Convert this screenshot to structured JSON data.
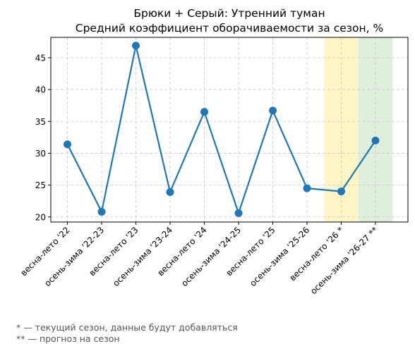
{
  "chart_data": {
    "type": "line",
    "title": "Брюки + Серый: Утренний туман",
    "subtitle": "Средний коэффициент оборачиваемости за сезон, %",
    "xlabel": "",
    "ylabel": "",
    "categories": [
      "весна-лето '22",
      "осень-зима '22-23",
      "весна-лето '23",
      "осень-зима '23-24",
      "весна-лето '24",
      "осень-зима '24-25",
      "весна-лето '25",
      "осень-зима '25-26",
      "весна-лето '26 *",
      "осень-зима '26-27 **"
    ],
    "series": [
      {
        "values": [
          31.4,
          20.8,
          46.9,
          23.9,
          36.5,
          20.6,
          36.7,
          24.5,
          24.0,
          32.0
        ],
        "color": "#1f77b4"
      }
    ],
    "ylim": [
      19.2,
      48.2
    ],
    "yticks": [
      20,
      25,
      30,
      35,
      40,
      45
    ],
    "grid": true,
    "highlights": [
      {
        "category": "весна-лето '26 *",
        "color": "#fff2b3"
      },
      {
        "category": "осень-зима '26-27 **",
        "color": "#d6ead2"
      }
    ]
  },
  "footnotes": [
    "* — текущий сезон, данные будут добавляться",
    "** — прогноз на сезон"
  ]
}
